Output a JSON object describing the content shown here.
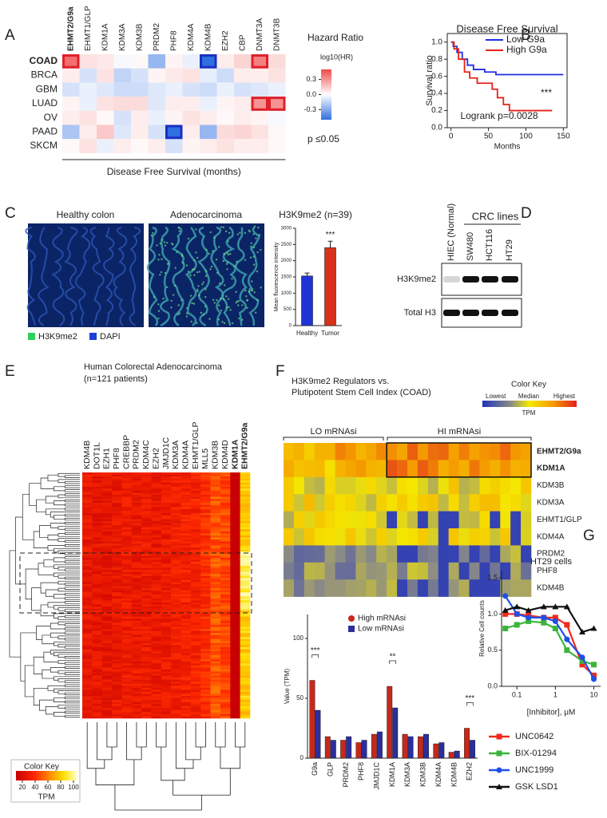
{
  "panel_labels": [
    "A",
    "B",
    "C",
    "D",
    "E",
    "F",
    "G"
  ],
  "chart_data": [
    {
      "type": "heatmap",
      "column_labels": [
        "EHMT2/G9a",
        "EHMT1/GLP",
        "KDM1A",
        "KDM3A",
        "KDM3B",
        "PRDM2",
        "PHF8",
        "KDM4A",
        "KDM4B",
        "EZH2",
        "CBP",
        "DNMT3A",
        "DNMT3B"
      ],
      "row_labels": [
        "COAD",
        "BRCA",
        "GBM",
        "LUAD",
        "OV",
        "PAAD",
        "SKCM"
      ],
      "bold_rows": [
        "COAD"
      ],
      "bold_columns": [
        "EHMT2/G9a"
      ],
      "values": [
        [
          0.4,
          0.08,
          0.06,
          -0.02,
          0.02,
          -0.25,
          0.03,
          -0.05,
          -0.55,
          0.05,
          0.12,
          0.35,
          0.1
        ],
        [
          0.05,
          -0.1,
          0.08,
          -0.15,
          -0.1,
          0.03,
          0.06,
          0.08,
          -0.06,
          -0.12,
          0.05,
          0.05,
          0.08
        ],
        [
          -0.1,
          -0.05,
          -0.08,
          -0.12,
          -0.12,
          -0.08,
          -0.05,
          -0.1,
          -0.12,
          -0.05,
          -0.1,
          -0.08,
          -0.05
        ],
        [
          0.03,
          -0.05,
          0.08,
          0.1,
          0.1,
          -0.08,
          0.05,
          0.05,
          -0.05,
          0.03,
          0.05,
          0.3,
          0.3
        ],
        [
          0.05,
          0.08,
          0.02,
          -0.1,
          0.05,
          -0.05,
          0.03,
          0.08,
          0.05,
          0.02,
          0.05,
          0.03,
          -0.02
        ],
        [
          -0.2,
          0.05,
          0.15,
          -0.08,
          0.05,
          -0.1,
          -0.5,
          0.05,
          -0.25,
          0.1,
          0.12,
          0.08,
          0.02
        ],
        [
          0.02,
          0.08,
          -0.05,
          0.05,
          0.02,
          0.05,
          -0.1,
          0.03,
          0.05,
          0.08,
          0.05,
          0.05,
          0.02
        ]
      ],
      "clim": [
        -0.5,
        0.5
      ],
      "high_color": "#f04a4a",
      "low_color": "#2f6fe0",
      "significant": [
        {
          "row": "COAD",
          "column": "EHMT2/G9a"
        },
        {
          "row": "COAD",
          "column": "KDM4B"
        },
        {
          "row": "COAD",
          "column": "DNMT3A"
        },
        {
          "row": "LUAD",
          "column": "DNMT3A"
        },
        {
          "row": "LUAD",
          "column": "DNMT3B"
        },
        {
          "row": "PAAD",
          "column": "PHF8"
        }
      ],
      "significant_colors": {
        "positive": "#e0202a",
        "negative": "#1a2fc4"
      },
      "legend_title": "Hazard Ratio",
      "colorbar_label": "log10(HR)",
      "colorbar_ticks": [
        0.3,
        {
          "value": 0,
          "label": "0.0"
        },
        -0.3
      ],
      "significance_label": "p ≤0.05",
      "xlabel": "Disease Free Survival (months)"
    },
    {
      "type": "line",
      "title": "Disease Free Survival",
      "xlabel": "Months",
      "ylabel": "Survival ratio",
      "xlim": [
        -5,
        155
      ],
      "ylim": [
        0,
        1.1
      ],
      "xticks": [
        0,
        50,
        100,
        150
      ],
      "yticks": [
        {
          "value": 0,
          "label": "0.0"
        },
        {
          "value": 0.2,
          "label": "0.2"
        },
        {
          "value": 0.4,
          "label": "0.4"
        },
        {
          "value": 0.6,
          "label": "0.6"
        },
        {
          "value": 0.8,
          "label": "0.8"
        },
        {
          "value": 1,
          "label": "1.0"
        }
      ],
      "legend": "upper right",
      "series": [
        {
          "name": "Low G9a",
          "color": "#1f2fe0",
          "x": [
            0,
            3,
            3,
            8,
            8,
            15,
            15,
            22,
            22,
            30,
            30,
            45,
            45,
            60,
            60,
            150
          ],
          "values": [
            1,
            1,
            0.95,
            0.95,
            0.88,
            0.88,
            0.8,
            0.8,
            0.73,
            0.73,
            0.68,
            0.68,
            0.65,
            0.65,
            0.62,
            0.62
          ]
        },
        {
          "name": "High G9a",
          "color": "#e8201a",
          "x": [
            0,
            4,
            4,
            10,
            10,
            18,
            18,
            25,
            25,
            35,
            35,
            55,
            55,
            62,
            62,
            70,
            70,
            78,
            78,
            135
          ],
          "values": [
            1,
            1,
            0.92,
            0.92,
            0.8,
            0.8,
            0.65,
            0.65,
            0.58,
            0.58,
            0.52,
            0.52,
            0.45,
            0.45,
            0.35,
            0.35,
            0.27,
            0.27,
            0.2,
            0.2
          ]
        }
      ],
      "annotations": [
        "***",
        "Logrank p=0.0028"
      ]
    },
    {
      "type": "bar",
      "title": "H3K9me2 (n=39)",
      "ylabel": "Mean fluorescence intensity",
      "categories": [
        "Healthy",
        "Tumor"
      ],
      "values": [
        1530,
        2400
      ],
      "errors": [
        90,
        200
      ],
      "colors": [
        "#1f33d6",
        "#d8321a"
      ],
      "ylim": [
        0,
        3000
      ],
      "yticks": [
        0,
        500,
        1000,
        1500,
        2000,
        2500,
        3000
      ],
      "annotation": "***"
    },
    {
      "type": "grouped_bar",
      "ylabel": "Value (TPM)",
      "categories": [
        "G9a",
        "GLP",
        "PRDM2",
        "PHF8",
        "JMJD1C",
        "KDM1A",
        "KDM3A",
        "KDM3B",
        "KDM4A",
        "KDM4B",
        "EZH2"
      ],
      "series": [
        {
          "name": "High mRNAsi",
          "color": "#c4291c",
          "marker": "circle",
          "values": [
            65,
            18,
            15,
            13,
            20,
            60,
            20,
            18,
            12,
            5,
            25
          ]
        },
        {
          "name": "Low mRNAsi",
          "color": "#2b2f9c",
          "marker": "square",
          "values": [
            40,
            15,
            18,
            15,
            22,
            42,
            18,
            20,
            13,
            6,
            15
          ]
        }
      ],
      "ylim": [
        0,
        120
      ],
      "yticks": [
        0,
        50,
        100
      ],
      "annotations": [
        {
          "text": "***",
          "category": "G9a"
        },
        {
          "text": "**",
          "category": "KDM1A"
        },
        {
          "text": "***",
          "category": "EZH2"
        }
      ]
    },
    {
      "type": "scatter",
      "title": "HT29 cells",
      "xlabel": "[Inhibitor], μM",
      "ylabel": "Relative Cell counts",
      "log_x": true,
      "xlim": [
        0.04,
        15
      ],
      "ylim": [
        0,
        1.6
      ],
      "xticks": [
        0.1,
        1,
        10
      ],
      "yticks": [
        {
          "value": 0,
          "label": "0.0"
        },
        {
          "value": 0.5,
          "label": "0.5"
        },
        {
          "value": 1,
          "label": "1.0"
        },
        {
          "value": 1.5,
          "label": "1.5"
        }
      ],
      "x": [
        0.05,
        0.1,
        0.2,
        0.5,
        1,
        2,
        5,
        10
      ],
      "series": [
        {
          "name": "UNC0642",
          "color": "#f02a1a",
          "marker": "square",
          "values": [
            1.0,
            1.0,
            0.98,
            0.95,
            0.95,
            0.85,
            0.3,
            0.15
          ]
        },
        {
          "name": "BIX-01294",
          "color": "#3cb43c",
          "marker": "square",
          "values": [
            0.8,
            0.85,
            0.9,
            0.88,
            0.8,
            0.5,
            0.35,
            0.3
          ]
        },
        {
          "name": "UNC1999",
          "color": "#1f4fe8",
          "marker": "circle",
          "values": [
            1.25,
            1.0,
            0.95,
            0.95,
            0.9,
            0.65,
            0.4,
            0.1
          ]
        },
        {
          "name": "GSK LSD1",
          "color": "#111111",
          "marker": "triangle",
          "values": [
            1.05,
            1.1,
            1.05,
            1.1,
            1.1,
            1.1,
            0.75,
            0.8
          ]
        }
      ]
    }
  ],
  "panel_c": {
    "images": [
      "Healthy colon",
      "Adenocarcinoma"
    ],
    "legend": [
      "H3K9me2",
      "DAPI"
    ]
  },
  "panel_d": {
    "group_label": "CRC lines",
    "lanes": [
      "HIEC (Normal)",
      "SW480",
      "HCT116",
      "HT29"
    ],
    "bands": [
      "H3K9me2",
      "Total H3"
    ]
  },
  "panel_e": {
    "title": "Human Colorectal Adenocarcinoma",
    "subtitle": "(n=121 patients)",
    "columns": [
      "KDM4B",
      "DOT1L",
      "EZH1",
      "PHF8",
      "CREBBP",
      "PRDM2",
      "KDM4C",
      "EZH2",
      "JMJD1C",
      "KDM3A",
      "KDM4A",
      "EHMT1/GLP",
      "MLL5",
      "KDM3B",
      "KDM4D",
      "KDM1A",
      "EHMT2/G9a"
    ],
    "bold_columns": [
      "KDM1A",
      "EHMT2/G9a"
    ],
    "color_key": {
      "title": "Color Key",
      "ticks": [
        20,
        40,
        60,
        80,
        100
      ],
      "clim": [
        10,
        105
      ],
      "label": "TPM"
    }
  },
  "panel_f": {
    "title": [
      "H3K9me2 Regulators vs.",
      "Plutipotent Stem Cell Index (COAD)"
    ],
    "groups": [
      "LO mRNAsi",
      "HI mRNAsi"
    ],
    "rows": [
      "EHMT2/G9a",
      "KDM1A",
      "KDM3B",
      "KDM3A",
      "EHMT1/GLP",
      "KDM4A",
      "PRDM2",
      "PHF8",
      "KDM4B"
    ],
    "bold_rows": [
      "EHMT2/G9a",
      "KDM1A"
    ],
    "color_key": {
      "title": "Color Key",
      "labels": [
        "Lowest",
        "Median",
        "Highest"
      ],
      "label": "TPM"
    }
  }
}
